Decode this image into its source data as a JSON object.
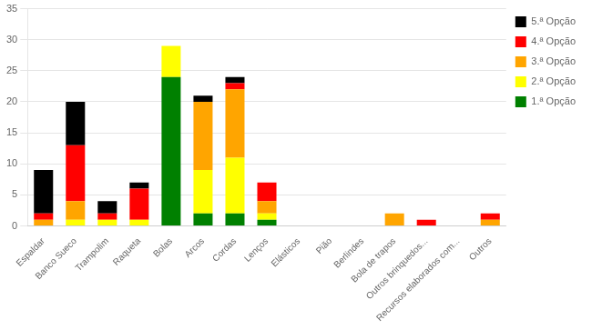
{
  "chart_data": {
    "type": "bar",
    "stacked": true,
    "categories": [
      "Espaldar",
      "Banco Sueco",
      "Trampolim",
      "Raqueta",
      "Bolas",
      "Arcos",
      "Cordas",
      "Lenços",
      "Elásticos",
      "Pião",
      "Berlindes",
      "Bola de trapos",
      "Outros brinquedos...",
      "Recursos elaborados com...",
      "Outros"
    ],
    "series": [
      {
        "name": "1.ª Opção",
        "color": "#008000",
        "values": [
          0,
          0,
          0,
          0,
          24,
          2,
          2,
          1,
          0,
          0,
          0,
          0,
          0,
          0,
          0
        ]
      },
      {
        "name": "2.ª Opção",
        "color": "#ffff00",
        "values": [
          0,
          1,
          1,
          1,
          5,
          7,
          9,
          1,
          0,
          0,
          0,
          0,
          0,
          0,
          0
        ]
      },
      {
        "name": "3.ª Opção",
        "color": "#ffa500",
        "values": [
          1,
          3,
          0,
          0,
          0,
          11,
          11,
          2,
          0,
          0,
          0,
          2,
          0,
          0,
          1
        ]
      },
      {
        "name": "4.ª Opção",
        "color": "#ff0000",
        "values": [
          1,
          9,
          1,
          5,
          0,
          0,
          1,
          3,
          0,
          0,
          0,
          0,
          1,
          0,
          1
        ]
      },
      {
        "name": "5.ª Opção",
        "color": "#000000",
        "values": [
          7,
          7,
          2,
          1,
          0,
          1,
          1,
          0,
          0,
          0,
          0,
          0,
          0,
          0,
          0
        ]
      }
    ],
    "ylim": [
      0,
      35
    ],
    "yticks": [
      0,
      5,
      10,
      15,
      20,
      25,
      30,
      35
    ],
    "grid": true,
    "legend": "right"
  }
}
